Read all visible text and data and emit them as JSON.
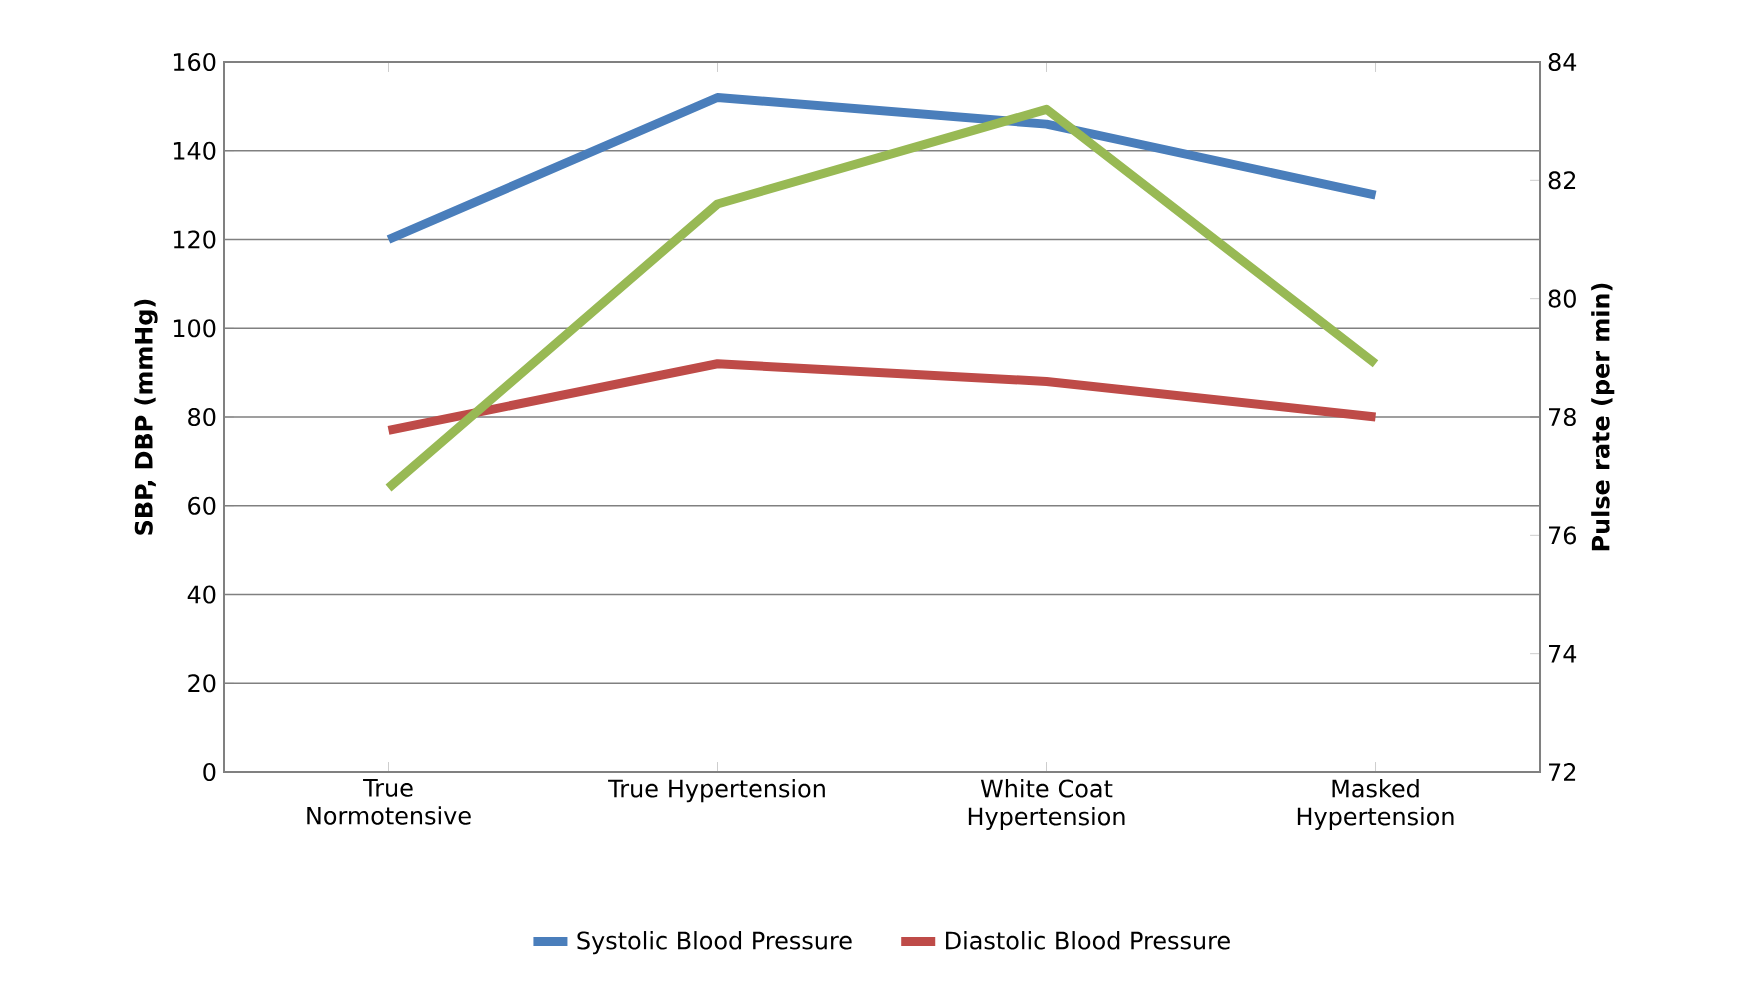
{
  "chart_data": {
    "type": "line",
    "categories": [
      "True Normotensive",
      "True Hypertension",
      "White Coat Hypertension",
      "Masked Hypertension"
    ],
    "series": [
      {
        "name": "Systolic Blood Pressure",
        "color": "#4a7ebb",
        "values": [
          120,
          152,
          146,
          130
        ]
      },
      {
        "name": "Diastolic Blood Pressure",
        "color": "#be4b48",
        "values": [
          77,
          92,
          88,
          80
        ]
      },
      {
        "color": "#98b954",
        "values": [
          76.8,
          81.6,
          83.2,
          78.9
        ],
        "axis": "y2"
      }
    ],
    "ylabel": "SBP, DBP (mmHg)",
    "y2label": "Pulse rate (per min)",
    "ylim": [
      0,
      160
    ],
    "yticks": [
      0,
      20,
      40,
      60,
      80,
      100,
      120,
      140,
      160
    ],
    "y2lim": [
      72,
      84
    ],
    "y2ticks": [
      72,
      74,
      76,
      78,
      80,
      82,
      84
    ],
    "grid": "y",
    "legend": "bottom",
    "line_style": "solid"
  }
}
